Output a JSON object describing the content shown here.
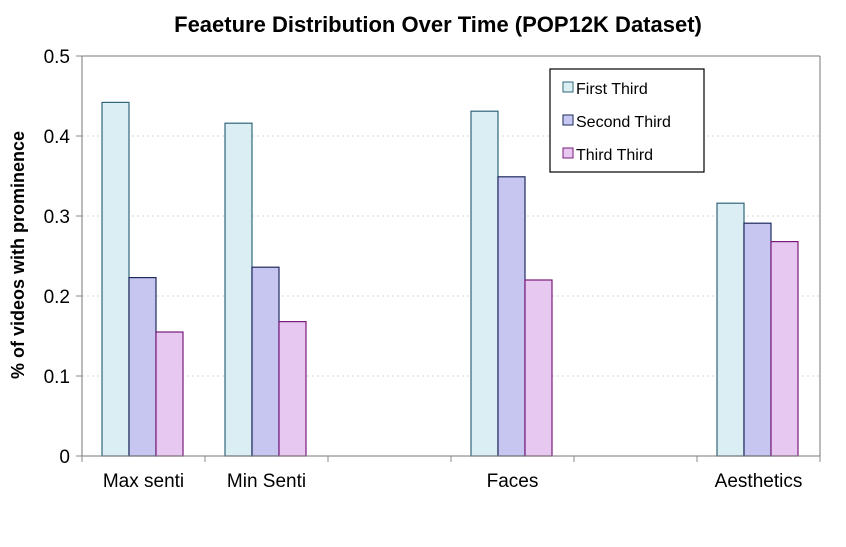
{
  "chart_data": {
    "type": "bar",
    "title": "Feaeture Distribution Over Time (POP12K Dataset)",
    "xlabel": "",
    "ylabel": "% of videos with prominence",
    "ylim": [
      0,
      0.5
    ],
    "yticks": [
      "0",
      "0.1",
      "0.2",
      "0.3",
      "0.4",
      "0.5"
    ],
    "grid": true,
    "legend_position": "top-right",
    "categories": [
      "Max senti",
      "Min Senti",
      "",
      "Faces",
      "",
      "Aesthetics"
    ],
    "series": [
      {
        "name": "First Third",
        "fill": "#dbeef3",
        "stroke": "#31667a",
        "values": [
          0.442,
          0.416,
          null,
          0.431,
          null,
          0.316
        ]
      },
      {
        "name": "Second Third",
        "fill": "#c6c6f0",
        "stroke": "#1f2a5e",
        "values": [
          0.223,
          0.236,
          null,
          0.349,
          null,
          0.291
        ]
      },
      {
        "name": "Third Third",
        "fill": "#e6c8f0",
        "stroke": "#7a1a7a",
        "values": [
          0.155,
          0.168,
          null,
          0.22,
          null,
          0.268
        ]
      }
    ]
  }
}
